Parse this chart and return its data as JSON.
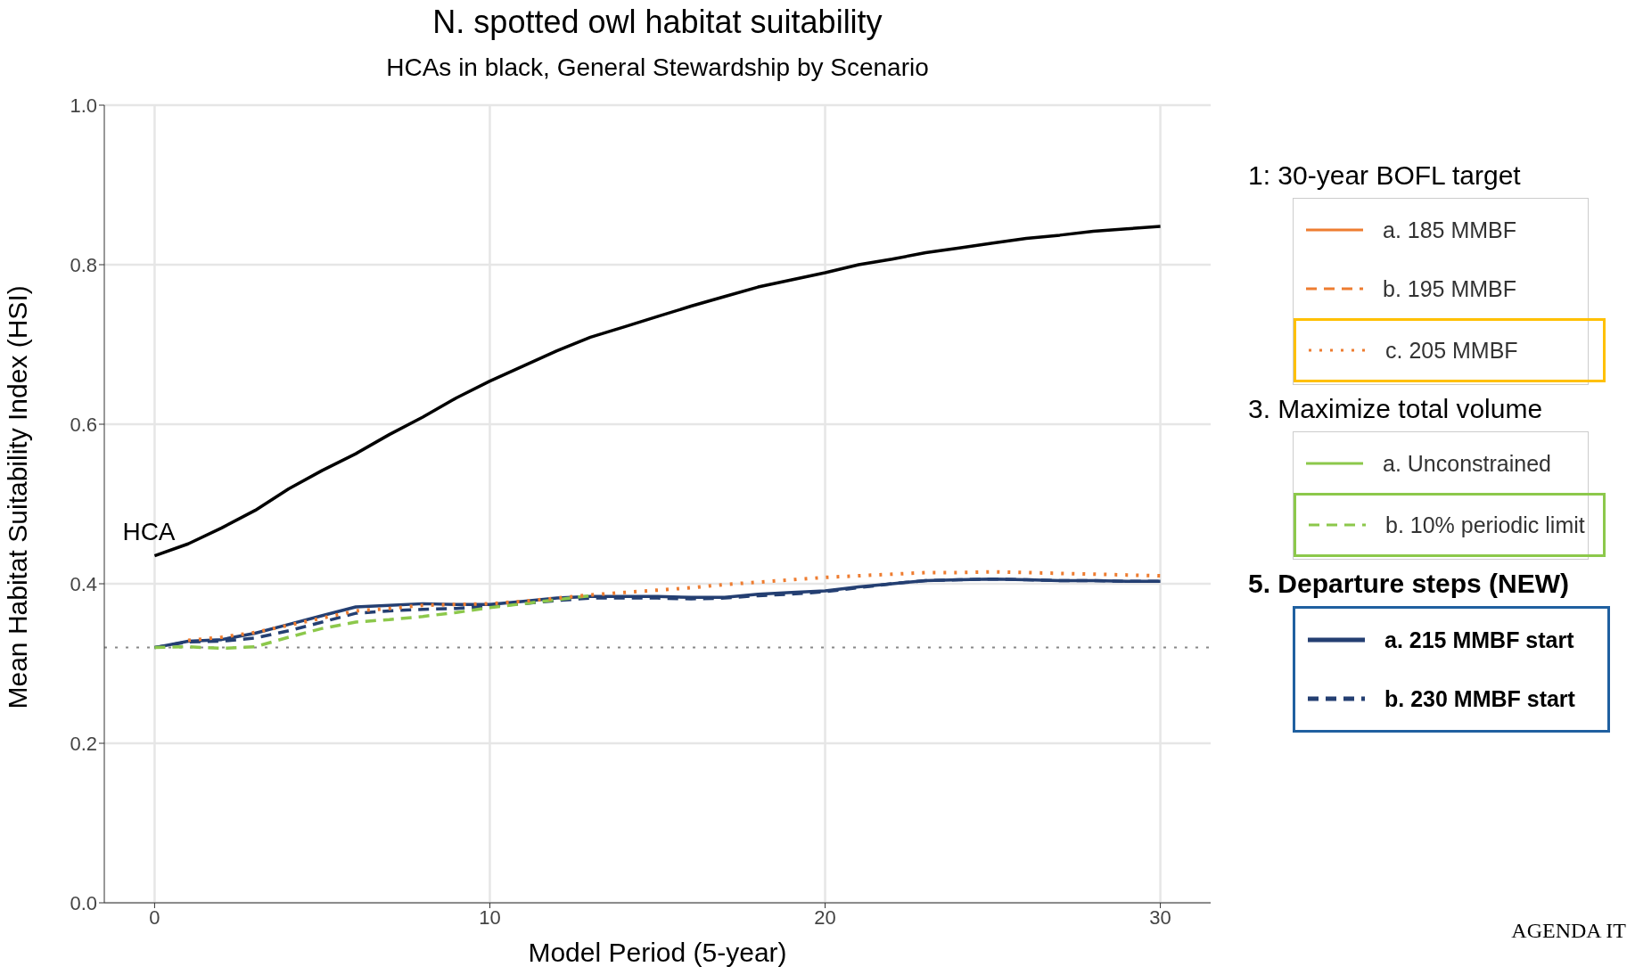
{
  "chart_data": {
    "type": "line",
    "title": "N. spotted owl habitat suitability",
    "subtitle": "HCAs in black, General Stewardship by Scenario",
    "xlabel": "Model Period (5-year)",
    "ylabel": "Mean Habitat Suitability Index (HSI)",
    "x": [
      0,
      1,
      2,
      3,
      4,
      5,
      6,
      7,
      8,
      9,
      10,
      11,
      12,
      13,
      14,
      15,
      16,
      17,
      18,
      19,
      20,
      21,
      22,
      23,
      24,
      25,
      26,
      27,
      28,
      29,
      30
    ],
    "xlim": [
      -1.5,
      31.5
    ],
    "xticks": [
      0,
      10,
      20,
      30
    ],
    "ylim": [
      0,
      1
    ],
    "yticks": [
      {
        "value": 0,
        "label": "0.0"
      },
      0.2,
      0.4,
      0.6,
      0.8,
      {
        "value": 1,
        "label": "1.0"
      }
    ],
    "grid": true,
    "legend": "right",
    "series": [
      {
        "name": "a. 185 MMBF",
        "color": "#ee7d31",
        "line_style": "solid",
        "values": [
          null,
          null,
          null,
          null,
          null,
          null,
          null,
          null,
          null,
          null,
          null,
          null,
          null,
          null,
          null,
          null,
          null,
          null,
          null,
          null,
          null,
          null,
          null,
          null,
          null,
          null,
          null,
          null,
          null,
          null,
          null
        ]
      },
      {
        "name": "b. 195 MMBF",
        "color": "#ee7d31",
        "line_style": "dashed",
        "values": [
          null,
          null,
          null,
          null,
          null,
          null,
          null,
          null,
          null,
          null,
          null,
          null,
          null,
          null,
          null,
          null,
          null,
          null,
          null,
          null,
          null,
          null,
          null,
          null,
          null,
          null,
          null,
          null,
          null,
          null,
          null
        ]
      },
      {
        "name": "c. 205 MMBF",
        "color": "#ee7d31",
        "line_style": "dotted",
        "values": [
          null,
          0.329,
          0.333,
          0.339,
          0.348,
          0.357,
          0.366,
          0.369,
          0.373,
          0.374,
          0.375,
          0.378,
          0.382,
          0.386,
          0.389,
          0.392,
          0.395,
          0.399,
          0.402,
          0.405,
          0.408,
          0.41,
          0.412,
          0.414,
          0.414,
          0.415,
          0.414,
          0.413,
          0.412,
          0.411,
          0.41
        ]
      },
      {
        "name": "a. Unconstrained",
        "color": "#8cc84b",
        "line_style": "solid",
        "values": [
          null,
          null,
          null,
          null,
          null,
          null,
          null,
          null,
          null,
          null,
          null,
          null,
          null,
          null,
          null,
          null,
          null,
          null,
          null,
          null,
          null,
          null,
          null,
          null,
          null,
          null,
          null,
          null,
          null,
          null,
          null
        ]
      },
      {
        "name": "b. 10% periodic limit",
        "color": "#8cc84b",
        "line_style": "dashed",
        "values": [
          0.32,
          0.321,
          0.319,
          0.321,
          0.333,
          0.344,
          0.352,
          0.355,
          0.359,
          0.364,
          0.37,
          0.375,
          0.38,
          0.385,
          null,
          null,
          null,
          null,
          null,
          null,
          null,
          null,
          null,
          null,
          null,
          null,
          null,
          null,
          null,
          null,
          null
        ]
      },
      {
        "name": "a. 215 MMBF start",
        "color": "#243f72",
        "line_style": "solid",
        "values": [
          0.32,
          0.328,
          0.33,
          0.338,
          0.349,
          0.36,
          0.371,
          0.373,
          0.375,
          0.374,
          0.374,
          0.378,
          0.382,
          0.384,
          0.384,
          0.384,
          0.383,
          0.383,
          0.387,
          0.389,
          0.391,
          0.396,
          0.4,
          0.404,
          0.405,
          0.406,
          0.405,
          0.404,
          0.404,
          0.403,
          0.403
        ]
      },
      {
        "name": "b. 230 MMBF start",
        "color": "#243f72",
        "line_style": "dashed",
        "values": [
          0.32,
          0.327,
          0.328,
          0.332,
          0.341,
          0.352,
          0.363,
          0.366,
          0.368,
          0.369,
          0.372,
          0.375,
          0.379,
          0.382,
          0.382,
          0.382,
          0.381,
          0.382,
          0.385,
          0.387,
          0.39,
          0.395,
          0.4,
          0.404,
          0.405,
          0.406,
          0.405,
          0.404,
          0.404,
          0.403,
          0.403
        ]
      },
      {
        "name": "HCA",
        "color": "#000000",
        "line_style": "solid",
        "values": [
          0.435,
          0.45,
          0.47,
          0.492,
          0.519,
          0.542,
          0.563,
          0.587,
          0.609,
          0.633,
          0.654,
          0.673,
          0.692,
          0.709,
          0.722,
          0.735,
          0.748,
          0.76,
          0.772,
          0.781,
          0.79,
          0.8,
          0.807,
          0.815,
          0.821,
          0.827,
          0.833,
          0.837,
          0.842,
          0.845,
          0.848
        ]
      }
    ],
    "ref_lines": [
      {
        "axis": "y",
        "value": 0.32,
        "color": "#888888",
        "line_style": "dotted"
      }
    ],
    "annotations": [
      "1: 30-year BOFL target",
      "3. Maximize total volume",
      "5. Departure steps (NEW)",
      "AGENDA IT"
    ]
  }
}
